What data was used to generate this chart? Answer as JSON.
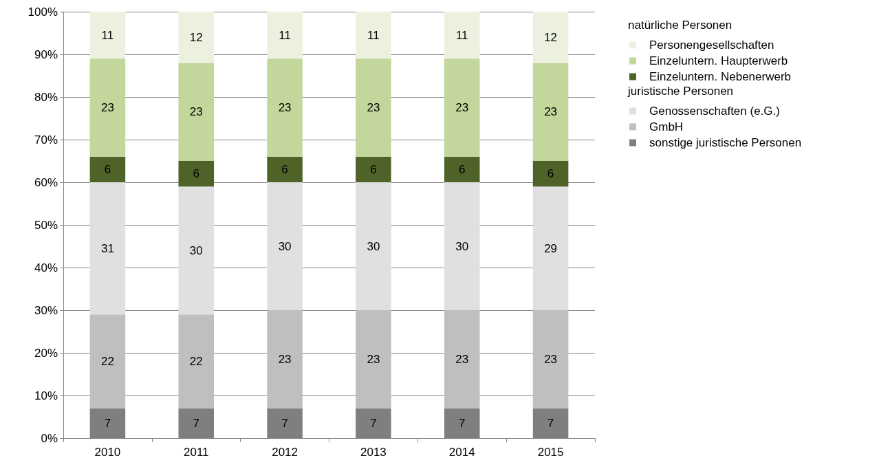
{
  "chart_data": {
    "type": "bar",
    "stacked": true,
    "categories": [
      "2010",
      "2011",
      "2012",
      "2013",
      "2014",
      "2015"
    ],
    "series": [
      {
        "name": "sonstige juristische Personen",
        "color": "#7f7f7f",
        "values": [
          7,
          7,
          7,
          7,
          7,
          7
        ]
      },
      {
        "name": "GmbH",
        "color": "#bfbfbf",
        "values": [
          22,
          22,
          23,
          23,
          23,
          23
        ]
      },
      {
        "name": "Genossenschaften (e.G.)",
        "color": "#e0e0e0",
        "values": [
          31,
          30,
          30,
          30,
          30,
          29
        ]
      },
      {
        "name": "Einzeluntern. Nebenerwerb",
        "color": "#4f6228",
        "values": [
          6,
          6,
          6,
          6,
          6,
          6
        ]
      },
      {
        "name": "Einzeluntern. Haupterwerb",
        "color": "#c3d69b",
        "values": [
          23,
          23,
          23,
          23,
          23,
          23
        ]
      },
      {
        "name": "Personengesellschaften",
        "color": "#ebf1de",
        "values": [
          11,
          12,
          11,
          11,
          11,
          12
        ]
      }
    ],
    "ylim": [
      0,
      100
    ],
    "yticks": [
      {
        "value": 0,
        "label": "0%"
      },
      {
        "value": 10,
        "label": "10%"
      },
      {
        "value": 20,
        "label": "20%"
      },
      {
        "value": 30,
        "label": "30%"
      },
      {
        "value": 40,
        "label": "40%"
      },
      {
        "value": 50,
        "label": "50%"
      },
      {
        "value": 60,
        "label": "60%"
      },
      {
        "value": 70,
        "label": "70%"
      },
      {
        "value": 80,
        "label": "80%"
      },
      {
        "value": 90,
        "label": "90%"
      },
      {
        "value": 100,
        "label": "100%"
      }
    ],
    "grid": "y",
    "legend": "right",
    "data_labels": true,
    "annotations": [
      "natürliche Personen",
      "juristische Personen"
    ]
  }
}
